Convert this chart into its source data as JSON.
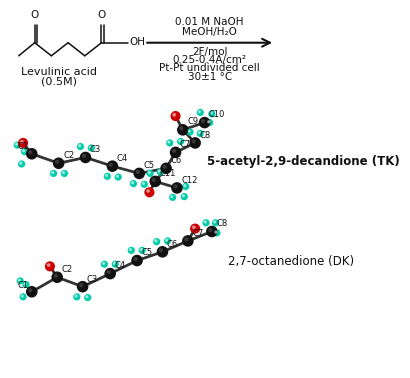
{
  "bg_color": "#ffffff",
  "black": "#111111",
  "red": "#cc0000",
  "teal": "#00ccaa",
  "bond_color": "#333333",
  "reaction_conditions_line1": "0.01 M NaOH",
  "reaction_conditions_line2": "MeOH/H₂O",
  "reaction_conditions_line3": "2F/mol",
  "reaction_conditions_line4": "0.25-0.4A/cm²",
  "reaction_conditions_line5": "Pt-Pt undivided cell",
  "reaction_conditions_line6": "30±1 °C",
  "levulinic_label1": "Levulinic acid",
  "levulinic_label2": "(0.5M)",
  "product1_label": "5-acetyl-2,9-decandione (TK)",
  "product2_label": "2,7-octanedione (DK)"
}
